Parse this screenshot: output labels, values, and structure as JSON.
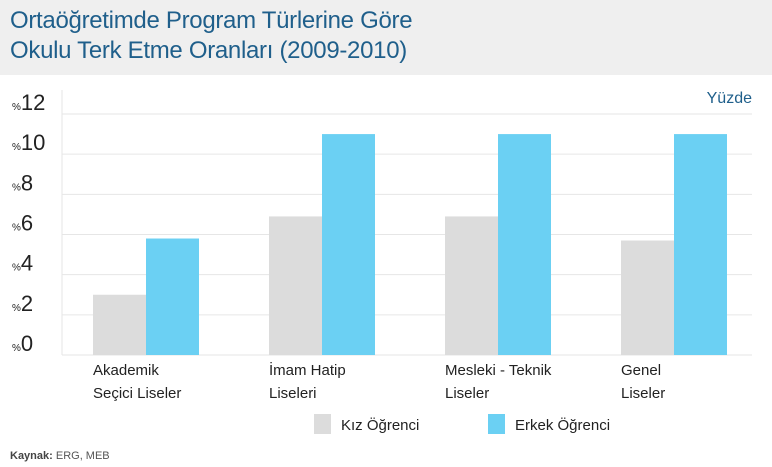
{
  "header": {
    "title_line1": "Ortaöğretimde Program Türlerine Göre",
    "title_line2": "Okulu Terk Etme Oranları (2009-2010)"
  },
  "unit_label": "Yüzde",
  "source": {
    "label": "Kaynak:",
    "text": "ERG, MEB"
  },
  "colors": {
    "kiz": "#dcdcdc",
    "erkek": "#6bd0f3",
    "title": "#1f5f8b",
    "grid": "#e6e6e6"
  },
  "chart_data": {
    "type": "bar",
    "categories": [
      [
        "Akademik",
        "Seçici Liseler"
      ],
      [
        "İmam Hatip",
        "Liseleri"
      ],
      [
        "Mesleki - Teknik",
        "Liseler"
      ],
      [
        "Genel",
        "Liseler"
      ]
    ],
    "series": [
      {
        "name": "Kız Öğrenci",
        "values": [
          3,
          6.9,
          6.9,
          5.7
        ]
      },
      {
        "name": "Erkek Öğrenci",
        "values": [
          5.8,
          11,
          11,
          11
        ]
      }
    ],
    "yticks": [
      0,
      2,
      4,
      6,
      8,
      10,
      12
    ],
    "ytick_prefix": "%",
    "ylim": [
      0,
      12
    ],
    "grid": true,
    "legend": "bottom-center"
  }
}
